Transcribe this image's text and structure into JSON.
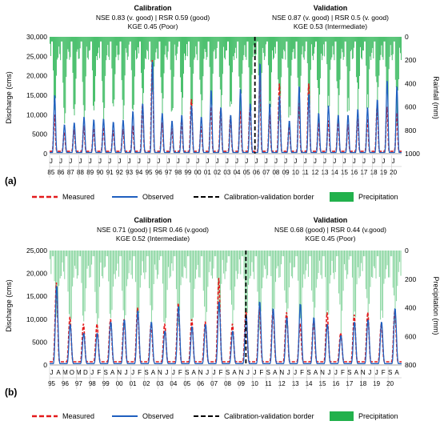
{
  "chart_data": [
    {
      "type": "line",
      "panel_label": "(a)",
      "ylabel": "Discharge (cms)",
      "ylabel_right": "Rainfall (mm)",
      "ylim": [
        0,
        30000
      ],
      "yticks": [
        "30,000",
        "25,000",
        "20,000",
        "15,000",
        "10,000",
        "5000",
        "0"
      ],
      "ylim_right": [
        0,
        1000
      ],
      "yticks_right": [
        "0",
        "200",
        "400",
        "600",
        "800",
        "1000"
      ],
      "x_years": [
        "85",
        "86",
        "87",
        "88",
        "89",
        "90",
        "91",
        "92",
        "93",
        "94",
        "95",
        "96",
        "97",
        "98",
        "99",
        "00",
        "01",
        "02",
        "03",
        "04",
        "05",
        "06",
        "07",
        "08",
        "09",
        "10",
        "11",
        "12",
        "13",
        "14",
        "15",
        "16",
        "17",
        "18",
        "19",
        "20"
      ],
      "x_month_label": "J",
      "calibration": {
        "title": "Calibration",
        "line1": "NSE 0.83 (v. good) | RSR 0.59 (good)",
        "line2": "KGE 0.45 (Poor)"
      },
      "validation": {
        "title": "Validation",
        "line1": "NSE 0.87 (v. good) | RSR 0.5 (v. good)",
        "line2": "KGE 0.53 (Intermediate)"
      },
      "border_year_index": 21,
      "observed_peaks": [
        15200,
        7500,
        8000,
        9500,
        8800,
        9000,
        8200,
        8700,
        11000,
        13000,
        24000,
        10500,
        8500,
        10000,
        12500,
        9500,
        16500,
        12000,
        10000,
        16800,
        13000,
        23500,
        13000,
        15000,
        8500,
        17500,
        15500,
        10500,
        12500,
        10000,
        10000,
        11500,
        12000,
        14000,
        19000,
        17500
      ],
      "measured_peaks": [
        10000,
        5500,
        6200,
        7200,
        6500,
        6800,
        6000,
        6300,
        7200,
        12500,
        24000,
        8000,
        6500,
        8500,
        14000,
        7000,
        12000,
        11500,
        9500,
        11000,
        12000,
        19000,
        10000,
        18000,
        7000,
        13000,
        18000,
        8000,
        8500,
        8000,
        7500,
        9000,
        9000,
        12000,
        12000,
        10500
      ],
      "precip_peaks": [
        700,
        820,
        760,
        800,
        720,
        780,
        690,
        760,
        740,
        630,
        560,
        700,
        760,
        700,
        710,
        740,
        720,
        690,
        700,
        680,
        760,
        660,
        720,
        730,
        800,
        700,
        690,
        740,
        700,
        760,
        740,
        690,
        710,
        680,
        720,
        740
      ]
    },
    {
      "type": "line",
      "panel_label": "(b)",
      "ylabel": "Discharge (cms)",
      "ylabel_right": "Precipitation (mm)",
      "ylim": [
        0,
        25000
      ],
      "yticks": [
        "25,000",
        "20,000",
        "15,000",
        "10,000",
        "5000",
        "0"
      ],
      "ylim_right": [
        0,
        800
      ],
      "yticks_right": [
        "0",
        "200",
        "400",
        "600",
        "800"
      ],
      "x_years": [
        "95",
        "96",
        "97",
        "98",
        "99",
        "00",
        "01",
        "02",
        "03",
        "04",
        "05",
        "06",
        "07",
        "08",
        "09",
        "10",
        "11",
        "12",
        "13",
        "14",
        "15",
        "16",
        "17",
        "18",
        "19",
        "20"
      ],
      "x_month_labels": [
        "J",
        "A",
        "M",
        "O",
        "M",
        "D",
        "J",
        "F",
        "S",
        "A",
        "N",
        "J",
        "J",
        "F",
        "S",
        "A",
        "N",
        "J",
        "J",
        "F",
        "S",
        "A",
        "N",
        "J",
        "J",
        "F",
        "S",
        "A",
        "N",
        "J",
        "J",
        "F",
        "S",
        "A",
        "N",
        "J",
        "J",
        "F",
        "S",
        "A",
        "N",
        "J",
        "J",
        "F",
        "S",
        "A",
        "N",
        "J",
        "J",
        "F",
        "S",
        "A"
      ],
      "calibration": {
        "title": "Calibration",
        "line1": "NSE 0.71 (good) | RSR 0.46 (v.good)",
        "line2": "KGE 0.52 (Intermediate)"
      },
      "validation": {
        "title": "Validation",
        "line1": "NSE 0.68 (good) | RSR 0.44 (v.good)",
        "line2": "KGE 0.45 (Poor)"
      },
      "border_year_index": 14.5,
      "observed_peaks": [
        17500,
        9000,
        7000,
        7000,
        9500,
        10000,
        12000,
        9500,
        7500,
        13000,
        8500,
        9000,
        14000,
        7500,
        11000,
        14000,
        12500,
        10500,
        13500,
        10500,
        9000,
        6500,
        9500,
        10000,
        9500,
        12500,
        11500,
        15000,
        8000
      ],
      "measured_peaks": [
        18000,
        10500,
        9000,
        9000,
        10000,
        10000,
        12500,
        9000,
        9000,
        13500,
        10000,
        9500,
        19000,
        9000,
        12000,
        12500,
        12000,
        11500,
        9000,
        9500,
        11500,
        7000,
        11000,
        11500,
        9000,
        12000,
        11000,
        15000,
        12000
      ],
      "precip_peaks": [
        520,
        600,
        560,
        600,
        540,
        580,
        560,
        540,
        600,
        550,
        590,
        570,
        520,
        560,
        540,
        580,
        500,
        560,
        600,
        560,
        540,
        600,
        560,
        540,
        560,
        520,
        560,
        540,
        600
      ]
    }
  ],
  "legend": {
    "measured": "Measured",
    "observed": "Observed",
    "border": "Calibration-validation border",
    "precipitation": "Precipitation"
  },
  "colors": {
    "measured": "#e31a1c",
    "observed": "#1f5fbf",
    "border": "#000000",
    "precipitation": "#22b14c"
  }
}
